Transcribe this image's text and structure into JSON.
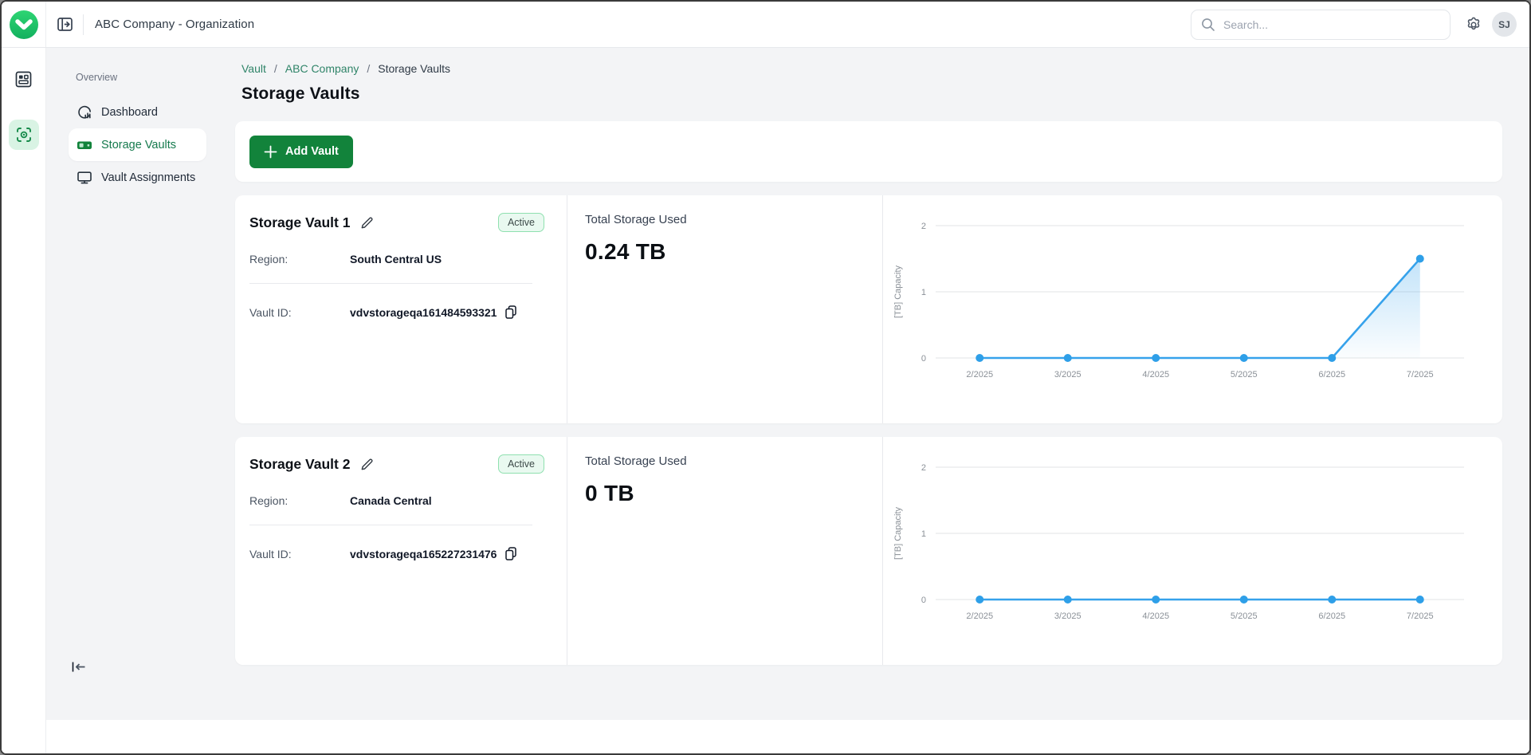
{
  "topbar": {
    "org_title": "ABC Company - Organization",
    "search_placeholder": "Search...",
    "avatar_initials": "SJ"
  },
  "sidebar": {
    "section_label": "Overview",
    "items": [
      {
        "label": "Dashboard"
      },
      {
        "label": "Storage Vaults"
      },
      {
        "label": "Vault Assignments"
      }
    ]
  },
  "breadcrumb": {
    "vault": "Vault",
    "company": "ABC Company",
    "current": "Storage Vaults",
    "separator": "/"
  },
  "page_title": "Storage Vaults",
  "toolbar": {
    "add_vault_label": "Add Vault"
  },
  "vaults": [
    {
      "name": "Storage Vault 1",
      "status": "Active",
      "region_label": "Region:",
      "region": "South Central US",
      "vault_id_label": "Vault ID:",
      "vault_id": "vdvstorageqa161484593321",
      "usage_label": "Total Storage Used",
      "usage_value": "0.24 TB"
    },
    {
      "name": "Storage Vault 2",
      "status": "Active",
      "region_label": "Region:",
      "region": "Canada Central",
      "vault_id_label": "Vault ID:",
      "vault_id": "vdvstorageqa165227231476",
      "usage_label": "Total Storage Used",
      "usage_value": "0 TB"
    }
  ],
  "chart_data": [
    {
      "type": "line",
      "title": "Storage Vault 1 capacity over time",
      "x": [
        "2/2025",
        "3/2025",
        "4/2025",
        "5/2025",
        "6/2025",
        "7/2025"
      ],
      "series": [
        {
          "name": "[TB] Capacity",
          "values": [
            0,
            0,
            0,
            0,
            0,
            1.5
          ]
        }
      ],
      "xlabel": "",
      "ylabel": "[TB] Capacity",
      "yticks": [
        0,
        1,
        2
      ],
      "ylim": [
        0,
        2
      ],
      "grid": true,
      "legend": "none",
      "line_color": "#36a2eb",
      "point_color": "#2e9fe8",
      "area_gradient_top": "rgba(54,162,235,0.30)",
      "area_gradient_bottom": "rgba(54,162,235,0.02)"
    },
    {
      "type": "line",
      "title": "Storage Vault 2 capacity over time",
      "x": [
        "2/2025",
        "3/2025",
        "4/2025",
        "5/2025",
        "6/2025",
        "7/2025"
      ],
      "series": [
        {
          "name": "[TB] Capacity",
          "values": [
            0,
            0,
            0,
            0,
            0,
            0
          ]
        }
      ],
      "xlabel": "",
      "ylabel": "[TB] Capacity",
      "yticks": [
        0,
        1,
        2
      ],
      "ylim": [
        0,
        2
      ],
      "grid": true,
      "legend": "none",
      "line_color": "#36a2eb",
      "point_color": "#2e9fe8",
      "area_gradient_top": "rgba(54,162,235,0.30)",
      "area_gradient_bottom": "rgba(54,162,235,0.02)"
    }
  ],
  "colors": {
    "accent_green": "#12833b",
    "logo_green": "#1fc16b",
    "breadcrumb_link": "#2f8468",
    "chart_blue": "#36a2eb",
    "badge_bg": "#e9f9f0",
    "badge_border": "#8fe0af",
    "sidebar_active_text": "#157a4d",
    "page_bg": "#f3f4f6"
  }
}
